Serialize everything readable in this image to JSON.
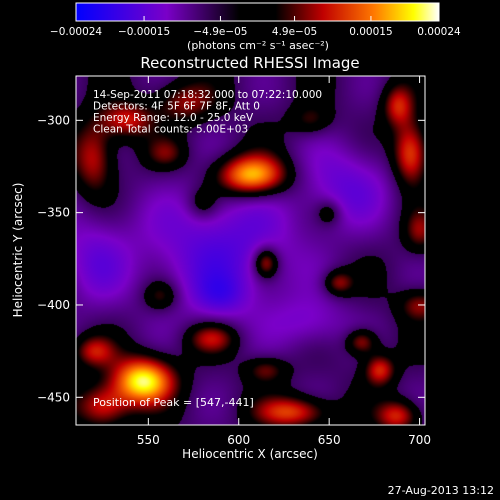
{
  "chart_data": {
    "type": "heatmap",
    "title": "Reconstructed RHESSI Image",
    "xlabel": "Heliocentric X (arcsec)",
    "ylabel": "Heliocentric Y (arcsec)",
    "xlim": [
      510,
      703
    ],
    "ylim": [
      -465,
      -276
    ],
    "x_ticks": [
      550,
      600,
      650,
      700
    ],
    "y_ticks": [
      -300,
      -350,
      -400,
      -450
    ],
    "colorbar": {
      "min": -0.00024,
      "max": 0.00024,
      "tick_values": [
        -0.00024,
        -0.00015,
        -4.9e-05,
        4.9e-05,
        0.00015,
        0.00024
      ],
      "tick_labels": [
        "-0.00024",
        "-0.00015",
        "-4.9e-05",
        "4.9e-05",
        "0.00015",
        "0.00024"
      ],
      "unit_label": "(photons cm⁻² s⁻¹ asec⁻²)"
    },
    "annotations": [
      "14-Sep-2011 07:18:32.000 to 07:22:10.000",
      "Detectors: 4F 5F 6F 7F 8F, Att 0",
      "Energy Range: 12.0 - 25.0 keV",
      "Clean    Total counts: 5.00E+03"
    ],
    "peak_label": "Position of Peak = [547,-441]",
    "timestamp": "27-Aug-2013 13:12",
    "sources": [
      {
        "x": 547,
        "y": -441,
        "sx": 12,
        "sy": 9,
        "amp": 1.0
      },
      {
        "x": 607,
        "y": -330,
        "sx": 14,
        "sy": 8,
        "amp": 0.95
      },
      {
        "x": 615,
        "y": -377,
        "sx": 5,
        "sy": 6,
        "amp": 0.6
      },
      {
        "x": 695,
        "y": -318,
        "sx": 7,
        "sy": 12,
        "amp": 0.7
      },
      {
        "x": 688,
        "y": -292,
        "sx": 6,
        "sy": 8,
        "amp": 0.5
      },
      {
        "x": 538,
        "y": -300,
        "sx": 10,
        "sy": 7,
        "amp": 0.5
      },
      {
        "x": 520,
        "y": -320,
        "sx": 8,
        "sy": 14,
        "amp": 0.5
      },
      {
        "x": 570,
        "y": -290,
        "sx": 12,
        "sy": 8,
        "amp": 0.4
      },
      {
        "x": 525,
        "y": -455,
        "sx": 10,
        "sy": 8,
        "amp": 0.55
      },
      {
        "x": 630,
        "y": -458,
        "sx": 14,
        "sy": 6,
        "amp": 0.6
      },
      {
        "x": 688,
        "y": -460,
        "sx": 8,
        "sy": 6,
        "amp": 0.55
      },
      {
        "x": 678,
        "y": -435,
        "sx": 6,
        "sy": 6,
        "amp": 0.55
      },
      {
        "x": 668,
        "y": -420,
        "sx": 6,
        "sy": 5,
        "amp": 0.5
      },
      {
        "x": 700,
        "y": -400,
        "sx": 8,
        "sy": 6,
        "amp": 0.4
      },
      {
        "x": 655,
        "y": -388,
        "sx": 6,
        "sy": 5,
        "amp": 0.45
      },
      {
        "x": 585,
        "y": -418,
        "sx": 10,
        "sy": 6,
        "amp": 0.45
      },
      {
        "x": 557,
        "y": -395,
        "sx": 7,
        "sy": 6,
        "amp": 0.35
      },
      {
        "x": 520,
        "y": -425,
        "sx": 8,
        "sy": 6,
        "amp": 0.45
      },
      {
        "x": 615,
        "y": -435,
        "sx": 8,
        "sy": 5,
        "amp": 0.35
      },
      {
        "x": 580,
        "y": -345,
        "sx": 6,
        "sy": 6,
        "amp": 0.3
      },
      {
        "x": 640,
        "y": -300,
        "sx": 8,
        "sy": 6,
        "amp": 0.3
      },
      {
        "x": 650,
        "y": -350,
        "sx": 5,
        "sy": 5,
        "amp": 0.3
      },
      {
        "x": 700,
        "y": -360,
        "sx": 6,
        "sy": 8,
        "amp": 0.35
      },
      {
        "x": 560,
        "y": -318,
        "sx": 8,
        "sy": 6,
        "amp": 0.3
      },
      {
        "x": 590,
        "y": -370,
        "sx": 30,
        "sy": 25,
        "amp": -0.5
      },
      {
        "x": 660,
        "y": -335,
        "sx": 18,
        "sy": 16,
        "amp": -0.4
      },
      {
        "x": 520,
        "y": -375,
        "sx": 14,
        "sy": 18,
        "amp": -0.35
      },
      {
        "x": 640,
        "y": -410,
        "sx": 15,
        "sy": 10,
        "amp": -0.3
      },
      {
        "x": 590,
        "y": -395,
        "sx": 10,
        "sy": 8,
        "amp": -0.3
      }
    ]
  }
}
